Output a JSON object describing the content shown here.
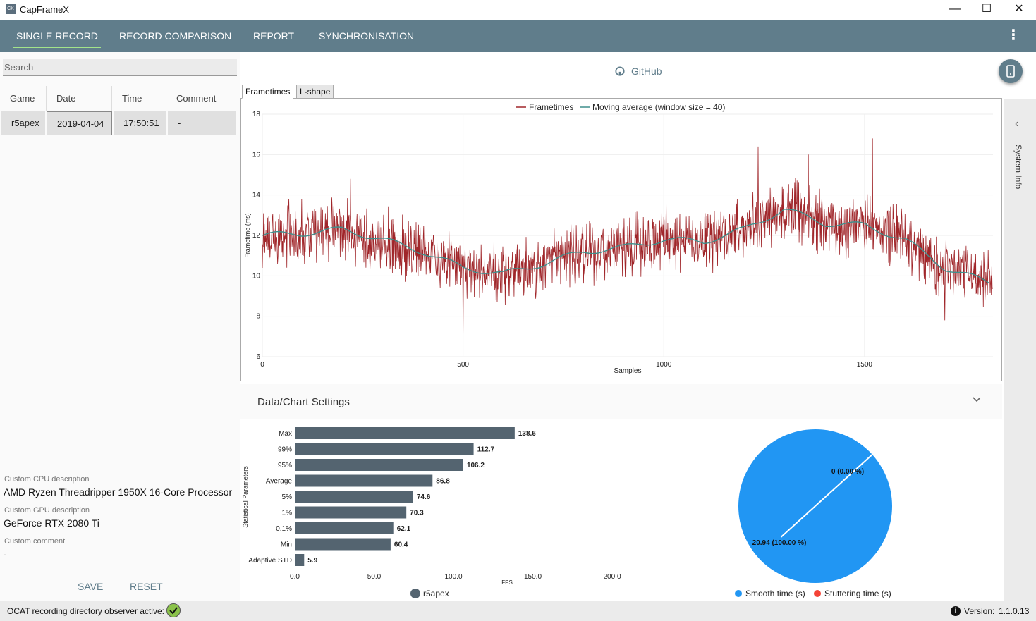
{
  "window": {
    "app_icon": "CX",
    "title": "CapFrameX",
    "minimize": "—",
    "maximize": "☐",
    "close": "✕"
  },
  "nav": {
    "tabs": [
      {
        "label": "SINGLE RECORD"
      },
      {
        "label": "RECORD COMPARISON"
      },
      {
        "label": "REPORT"
      },
      {
        "label": "SYNCHRONISATION"
      }
    ],
    "menu_icon": "⋮"
  },
  "left": {
    "search_placeholder": "Search",
    "columns": [
      "Game",
      "Date",
      "Time",
      "Comment"
    ],
    "rows": [
      {
        "game": "r5apex",
        "date": "2019-04-04",
        "time": "17:50:51",
        "comment": "-"
      }
    ],
    "cpu_label": "Custom CPU description",
    "cpu_value": "AMD Ryzen Threadripper 1950X 16-Core Processor",
    "gpu_label": "Custom GPU description",
    "gpu_value": "GeForce RTX 2080 Ti",
    "comment_label": "Custom comment",
    "comment_value": "-",
    "save": "SAVE",
    "reset": "RESET"
  },
  "center": {
    "github": "GitHub",
    "chart_tabs": [
      "Frametimes",
      "L-shape"
    ],
    "settings_label": "Data/Chart Settings",
    "system_info": "System Info",
    "colors": {
      "frametime": "#a0262a",
      "moving_avg": "#3f8f8c",
      "bars": "#546470",
      "smooth": "#2196f3",
      "stutter": "#f44336"
    }
  },
  "chart_data": [
    {
      "type": "line",
      "title": "",
      "legend": [
        "Frametimes",
        "Moving average (window size = 40)"
      ],
      "xlabel": "Samples",
      "ylabel": "Frametime (ms)",
      "xlim": [
        0,
        1820
      ],
      "ylim": [
        6,
        18
      ],
      "xticks": [
        0,
        500,
        1000,
        1500
      ],
      "yticks": [
        6,
        8,
        10,
        12,
        14,
        16,
        18
      ],
      "moving_average": {
        "x": [
          0,
          100,
          200,
          300,
          400,
          500,
          600,
          700,
          800,
          900,
          1000,
          1100,
          1200,
          1300,
          1400,
          1500,
          1600,
          1700,
          1820
        ],
        "y": [
          12.0,
          12.1,
          12.3,
          11.8,
          11.2,
          10.4,
          10.1,
          10.6,
          11.2,
          11.4,
          11.8,
          11.7,
          12.3,
          13.3,
          12.6,
          12.5,
          11.8,
          10.4,
          9.6
        ]
      },
      "frametimes_noise_amplitude_ms": 1.5,
      "frametimes_spikes": [
        {
          "x": 500,
          "y": 7.1
        },
        {
          "x": 1235,
          "y": 16.4
        },
        {
          "x": 1520,
          "y": 16.8
        },
        {
          "x": 1360,
          "y": 16.0
        },
        {
          "x": 1700,
          "y": 7.8
        },
        {
          "x": 220,
          "y": 14.8
        }
      ],
      "samples": 1820
    },
    {
      "type": "bar",
      "orientation": "horizontal",
      "ylabel": "Statistical Parameters",
      "xlabel": "FPS",
      "series_name": "r5apex",
      "categories": [
        "Max",
        "99%",
        "95%",
        "Average",
        "5%",
        "1%",
        "0.1%",
        "Min",
        "Adaptive STD"
      ],
      "values": [
        138.6,
        112.7,
        106.2,
        86.8,
        74.6,
        70.3,
        62.1,
        60.4,
        5.9
      ],
      "value_labels": [
        "138.6",
        "112.7",
        "106.2",
        "86.8",
        "74.6",
        "70.3",
        "62.1",
        "60.4",
        "5.9"
      ],
      "xlim": [
        0,
        200
      ],
      "xticks": [
        "0.0",
        "50.0",
        "100.0",
        "150.0",
        "200.0"
      ]
    },
    {
      "type": "pie",
      "labels": [
        "Smooth time (s)",
        "Stuttering time (s)"
      ],
      "values": [
        20.94,
        0
      ],
      "slice_labels": [
        "20.94 (100.00 %)",
        "0 (0.00 %)"
      ]
    }
  ],
  "status": {
    "observer_text": "OCAT recording directory observer active:",
    "version_label": "Version:",
    "version_value": "1.1.0.13"
  }
}
